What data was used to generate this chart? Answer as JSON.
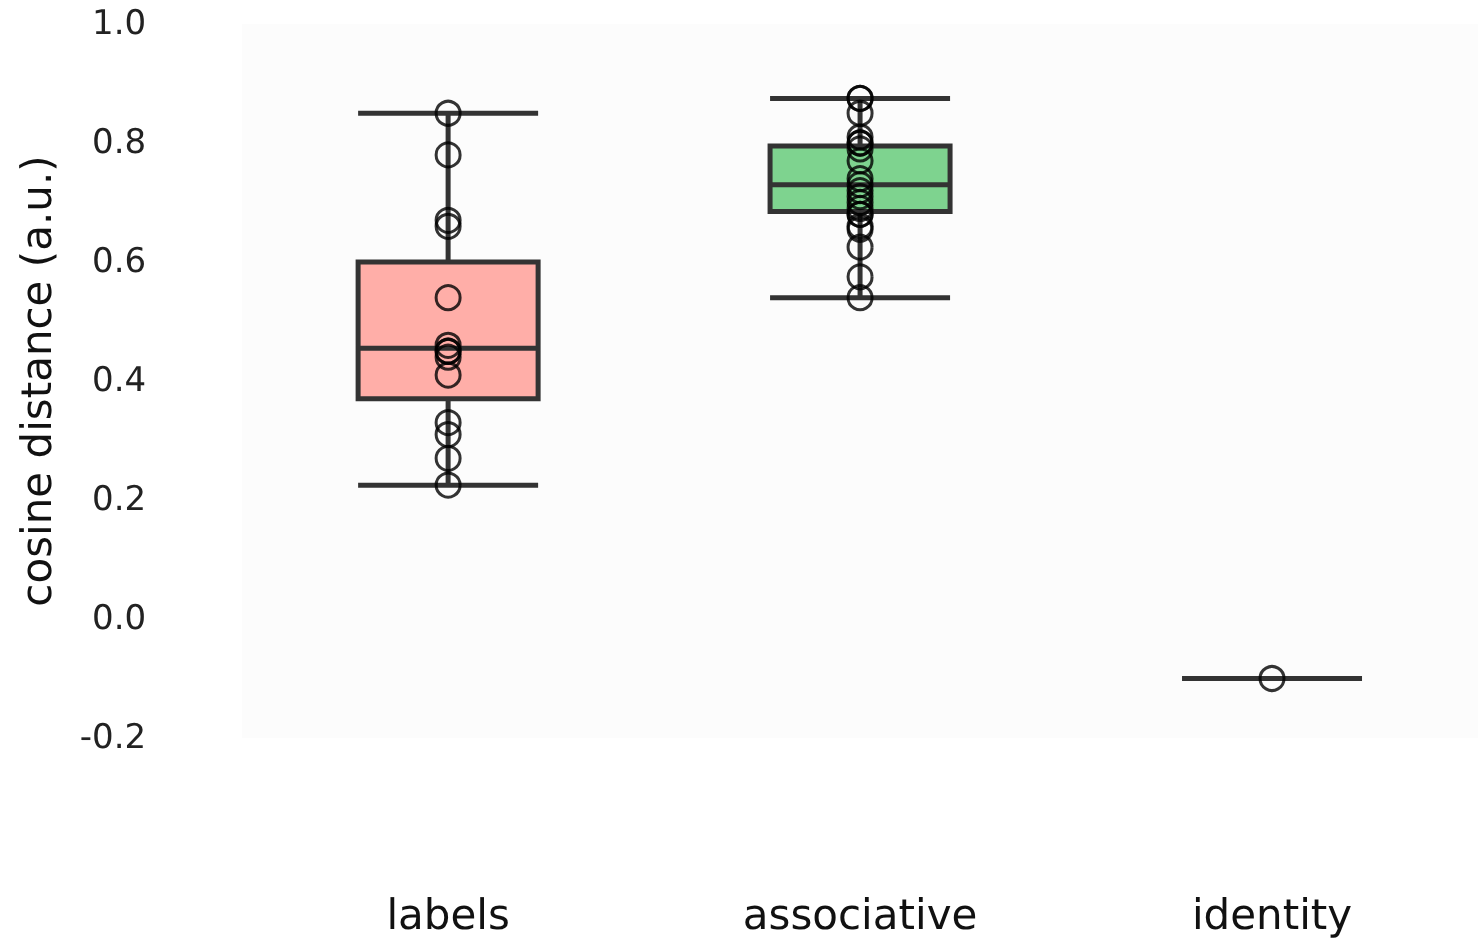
{
  "chart_data": {
    "type": "box",
    "ylabel": "cosine distance (a.u.)",
    "categories": [
      "labels",
      "associative",
      "identity"
    ],
    "colors": [
      "#ffaea8",
      "#7ed38f",
      "#333333"
    ],
    "boxes": [
      {
        "low": 0.225,
        "q1": 0.37,
        "median": 0.455,
        "q3": 0.6,
        "high": 0.85
      },
      {
        "low": 0.54,
        "q1": 0.685,
        "median": 0.73,
        "q3": 0.795,
        "high": 0.875
      },
      {
        "low": -0.1,
        "q1": -0.1,
        "median": -0.1,
        "q3": -0.1,
        "high": -0.1
      }
    ],
    "ylim": [
      -0.2,
      1.0
    ],
    "yticks": [
      -0.2,
      {
        "value": 0,
        "label": "0.0"
      },
      0.2,
      0.4,
      0.6,
      0.8,
      {
        "value": 1,
        "label": "1.0"
      }
    ],
    "grid": false,
    "marker": "circle",
    "series": [
      {
        "type": "scatter",
        "color": "#000000",
        "x": [
          "labels",
          "labels",
          "labels",
          "labels",
          "labels",
          "labels",
          "labels",
          "labels",
          "labels",
          "labels",
          "labels",
          "labels",
          "labels",
          "labels",
          "associative",
          "associative",
          "associative",
          "associative",
          "associative",
          "associative",
          "associative",
          "associative",
          "associative",
          "associative",
          "associative",
          "associative",
          "associative",
          "associative",
          "associative",
          "associative",
          "associative",
          "associative",
          "associative",
          "associative",
          "associative",
          "identity"
        ],
        "values": [
          0.85,
          0.78,
          0.67,
          0.66,
          0.54,
          0.46,
          0.45,
          0.45,
          0.44,
          0.41,
          0.33,
          0.31,
          0.27,
          0.225,
          0.875,
          0.875,
          0.85,
          0.81,
          0.8,
          0.8,
          0.79,
          0.77,
          0.74,
          0.73,
          0.72,
          0.71,
          0.7,
          0.69,
          0.68,
          0.68,
          0.66,
          0.655,
          0.625,
          0.575,
          0.54,
          -0.1
        ]
      }
    ]
  }
}
